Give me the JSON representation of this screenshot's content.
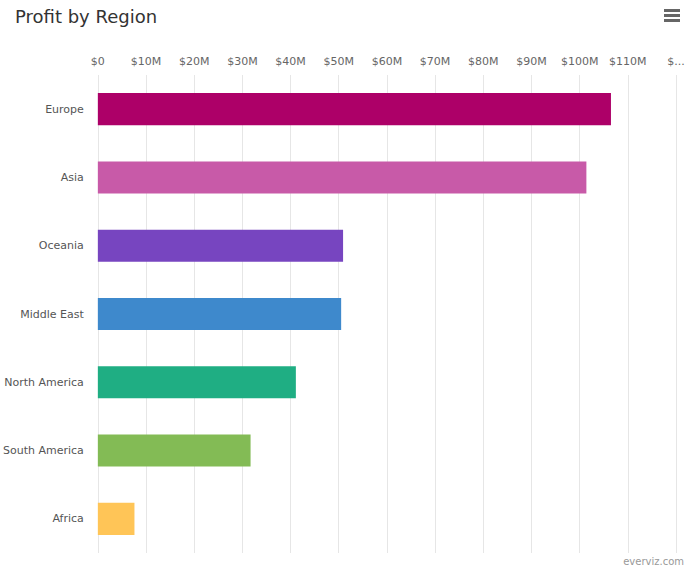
{
  "chart_data": {
    "type": "bar",
    "title": "Profit by Region",
    "orientation": "horizontal",
    "categories": [
      "Europe",
      "Asia",
      "Oceania",
      "Middle East",
      "North America",
      "South America",
      "Africa"
    ],
    "values": [
      106.5,
      101.4,
      50.9,
      50.5,
      41.1,
      31.7,
      7.6
    ],
    "colors": [
      "#ad0068",
      "#c85aa8",
      "#7745c0",
      "#3e89cc",
      "#1fae83",
      "#83bb55",
      "#ffc557"
    ],
    "xlim": [
      0,
      120
    ],
    "xticks": [
      {
        "value": 0,
        "label": "$0"
      },
      {
        "value": 10,
        "label": "$10M"
      },
      {
        "value": 20,
        "label": "$20M"
      },
      {
        "value": 30,
        "label": "$30M"
      },
      {
        "value": 40,
        "label": "$40M"
      },
      {
        "value": 50,
        "label": "$50M"
      },
      {
        "value": 60,
        "label": "$60M"
      },
      {
        "value": 70,
        "label": "$70M"
      },
      {
        "value": 80,
        "label": "$80M"
      },
      {
        "value": 90,
        "label": "$90M"
      },
      {
        "value": 100,
        "label": "$100M"
      },
      {
        "value": 110,
        "label": "$110M"
      },
      {
        "value": 120,
        "label": "$..."
      }
    ],
    "grid": true,
    "annotations": [
      "everviz.com"
    ]
  }
}
